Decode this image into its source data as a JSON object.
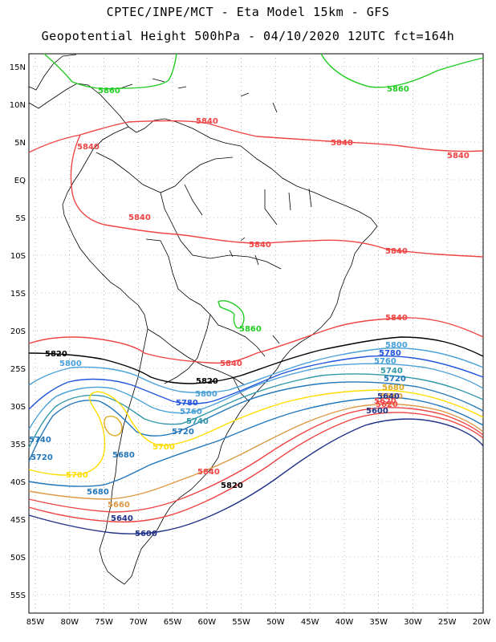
{
  "header": {
    "line1": "CPTEC/INPE/MCT  -  Eta Model 15km  -  GFS",
    "line2": "Geopotential Height 500hPa  -  04/10/2020 12UTC fct=164h"
  },
  "axes": {
    "lat_labels": [
      "15N",
      "10N",
      "5N",
      "EQ",
      "5S",
      "10S",
      "15S",
      "20S",
      "25S",
      "30S",
      "35S",
      "40S",
      "45S",
      "50S",
      "55S"
    ],
    "lon_labels": [
      "85W",
      "80W",
      "75W",
      "70W",
      "65W",
      "60W",
      "55W",
      "50W",
      "45W",
      "40W",
      "35W",
      "30W",
      "25W",
      "20W"
    ]
  },
  "colors": {
    "c5860": "#22cc22",
    "c5840": "#ee4444",
    "c5820": "#000000",
    "c5800": "#4aa0d8",
    "c5780": "#2255dd",
    "c5760": "#4aa0d8",
    "c5740": "#3399aa",
    "c5720": "#2277bb",
    "c5700": "#ffdd00",
    "c5680": "#ddaa22",
    "c5660": "#dd9944",
    "c5640": "#ee4444",
    "c5620": "#ee4444",
    "c5600": "#223388",
    "coast": "#000000"
  },
  "contour_labels": [
    {
      "text": "5860",
      "color": "c5860"
    },
    {
      "text": "5860",
      "color": "c5860"
    },
    {
      "text": "5860",
      "color": "c5860"
    },
    {
      "text": "5840",
      "color": "c5840"
    },
    {
      "text": "5840",
      "color": "c5840"
    },
    {
      "text": "5840",
      "color": "c5840"
    },
    {
      "text": "5840",
      "color": "c5840"
    },
    {
      "text": "5840",
      "color": "c5840"
    },
    {
      "text": "5840",
      "color": "c5840"
    },
    {
      "text": "5840",
      "color": "c5840"
    },
    {
      "text": "5840",
      "color": "c5840"
    },
    {
      "text": "5840",
      "color": "c5840"
    },
    {
      "text": "5840",
      "color": "c5840"
    },
    {
      "text": "5820",
      "color": "c5820"
    },
    {
      "text": "5820",
      "color": "c5820"
    },
    {
      "text": "5820",
      "color": "c5820"
    },
    {
      "text": "5800",
      "color": "c5800"
    },
    {
      "text": "5800",
      "color": "c5800"
    },
    {
      "text": "5800",
      "color": "c5800"
    },
    {
      "text": "5780",
      "color": "c5780"
    },
    {
      "text": "5780",
      "color": "c5780"
    },
    {
      "text": "5760",
      "color": "c5760"
    },
    {
      "text": "5760",
      "color": "c5760"
    },
    {
      "text": "5740",
      "color": "c5740"
    },
    {
      "text": "5740",
      "color": "c5740"
    },
    {
      "text": "5720",
      "color": "c5720"
    },
    {
      "text": "5720",
      "color": "c5720"
    },
    {
      "text": "5720",
      "color": "c5720"
    },
    {
      "text": "5700",
      "color": "c5700"
    },
    {
      "text": "5700",
      "color": "c5700"
    },
    {
      "text": "5680",
      "color": "c5680"
    },
    {
      "text": "5680",
      "color": "c5680"
    },
    {
      "text": "5680",
      "color": "c5720"
    },
    {
      "text": "5660",
      "color": "c5660"
    },
    {
      "text": "5660",
      "color": "c5660"
    },
    {
      "text": "5640",
      "color": "c5600"
    },
    {
      "text": "5640",
      "color": "c5600"
    },
    {
      "text": "5620",
      "color": "c5620"
    },
    {
      "text": "5620",
      "color": "c5620"
    },
    {
      "text": "5600",
      "color": "c5600"
    },
    {
      "text": "5600",
      "color": "c5600"
    },
    {
      "text": "5740",
      "color": "c5720"
    }
  ]
}
